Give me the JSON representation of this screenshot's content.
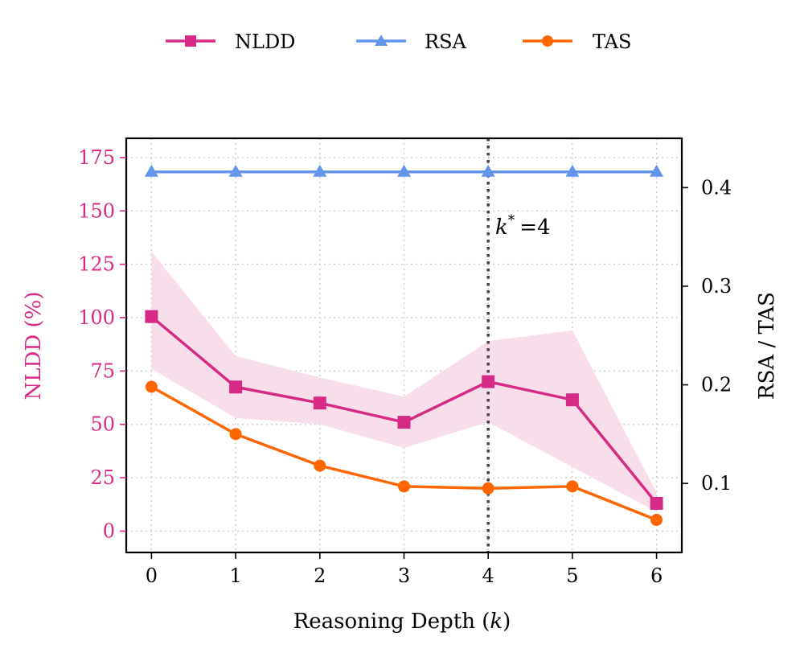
{
  "chart_data": {
    "type": "line",
    "x": [
      0,
      1,
      2,
      3,
      4,
      5,
      6
    ],
    "xlabel": "Reasoning Depth (k)",
    "ylabel_left": "NLDD (%)",
    "ylabel_right": "RSA / TAS",
    "xlim": [
      -0.3,
      6.3
    ],
    "ylim_left": [
      -10,
      184
    ],
    "ylim_right": [
      0.03,
      0.45
    ],
    "xticks": [
      "0",
      "1",
      "2",
      "3",
      "4",
      "5",
      "6"
    ],
    "yticks_left": [
      0,
      25,
      50,
      75,
      100,
      125,
      150,
      175
    ],
    "yticks_right": [
      0.1,
      0.2,
      0.3,
      0.4
    ],
    "grid": true,
    "legend": [
      "NLDD",
      "RSA",
      "TAS"
    ],
    "legend_position": "top-center",
    "series": [
      {
        "name": "NLDD",
        "axis": "left",
        "color": "#d62a86",
        "marker": "square",
        "values": [
          100.5,
          67.5,
          60.0,
          51.0,
          70.0,
          61.5,
          13.0
        ],
        "band_upper": [
          131.0,
          82.0,
          72.0,
          63.0,
          89.0,
          94.0,
          18.0
        ],
        "band_lower": [
          76.0,
          53.0,
          50.0,
          39.0,
          51.0,
          30.0,
          9.0
        ]
      },
      {
        "name": "RSA",
        "axis": "right",
        "color": "#6495ed",
        "marker": "triangle",
        "values": [
          0.416,
          0.416,
          0.416,
          0.416,
          0.416,
          0.416,
          0.416
        ]
      },
      {
        "name": "TAS",
        "axis": "right",
        "color": "#ff6600",
        "marker": "circle",
        "values": [
          0.198,
          0.15,
          0.118,
          0.097,
          0.095,
          0.097,
          0.063
        ]
      }
    ],
    "vline": {
      "x": 4,
      "label": "k* =4"
    }
  },
  "colors": {
    "nldd": "#d62a86",
    "nldd_band": "#f7d8e8",
    "rsa": "#6495ed",
    "tas": "#ff6600",
    "vline": "#444444"
  },
  "labels": {
    "xlabel_main": "Reasoning Depth (",
    "xlabel_var": "k",
    "xlabel_end": ")",
    "annot_var": "k",
    "annot_sup": "*",
    "annot_rest": "=4"
  }
}
